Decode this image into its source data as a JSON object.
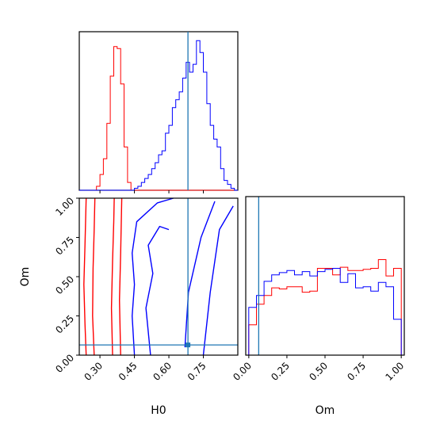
{
  "chart_data": {
    "type": "corner",
    "parameters": [
      "H0",
      "Om"
    ],
    "truth": {
      "H0": 0.683,
      "Om": 0.065
    },
    "colors": {
      "red_samples": "#ff0000",
      "blue_samples": "#0000ff",
      "truth": "#1f77b4"
    },
    "panels": {
      "h0_marginal": {
        "type": "histogram",
        "xlim": [
          0.21,
          0.9
        ],
        "x_ticks_visible_labels": false,
        "bin_edges": [
          0.21,
          0.225,
          0.24,
          0.255,
          0.27,
          0.285,
          0.3,
          0.315,
          0.33,
          0.345,
          0.36,
          0.375,
          0.39,
          0.405,
          0.42,
          0.435,
          0.45,
          0.465,
          0.48,
          0.495,
          0.51,
          0.525,
          0.54,
          0.555,
          0.57,
          0.585,
          0.6,
          0.615,
          0.63,
          0.645,
          0.66,
          0.675,
          0.69,
          0.705,
          0.72,
          0.735,
          0.75,
          0.765,
          0.78,
          0.795,
          0.81,
          0.825,
          0.84,
          0.855,
          0.87,
          0.885,
          0.9
        ],
        "series": [
          {
            "color": "red",
            "counts": [
              0,
              0,
              0,
              0,
              0,
              2,
              8,
              16,
              34,
              58,
              73,
              72,
              54,
              22,
              4,
              0,
              0,
              0,
              0,
              0,
              0,
              0,
              0,
              0,
              0,
              0,
              0,
              0,
              0,
              0,
              0,
              0,
              0,
              0,
              0,
              0,
              0,
              0,
              0,
              0,
              0,
              0,
              0,
              0,
              0,
              0
            ]
          },
          {
            "color": "blue",
            "counts": [
              0,
              0,
              0,
              0,
              0,
              0,
              0,
              0,
              0,
              0,
              0,
              0,
              0,
              0,
              0,
              0,
              1,
              2,
              4,
              6,
              8,
              11,
              14,
              18,
              20,
              29,
              33,
              42,
              46,
              50,
              57,
              65,
              60,
              64,
              76,
              70,
              60,
              44,
              33,
              26,
              22,
              11,
              5,
              3,
              1,
              0
            ]
          }
        ]
      },
      "joint": {
        "type": "contour",
        "xlim": [
          0.21,
          0.9
        ],
        "ylim": [
          0.0,
          1.0
        ],
        "x_ticks": [
          0.3,
          0.45,
          0.6,
          0.75
        ],
        "y_ticks": [
          0.0,
          0.25,
          0.5,
          0.75,
          1.0
        ],
        "xlabel": "H0",
        "ylabel": "Om",
        "contours": [
          {
            "color": "red",
            "points": [
              [
                0.24,
                0.0
              ],
              [
                0.235,
                0.2
              ],
              [
                0.23,
                0.45
              ],
              [
                0.235,
                0.7
              ],
              [
                0.24,
                1.0
              ]
            ]
          },
          {
            "color": "red",
            "points": [
              [
                0.275,
                0.0
              ],
              [
                0.268,
                0.25
              ],
              [
                0.27,
                0.55
              ],
              [
                0.275,
                0.8
              ],
              [
                0.278,
                1.0
              ]
            ]
          },
          {
            "color": "red",
            "points": [
              [
                0.355,
                0.0
              ],
              [
                0.35,
                0.3
              ],
              [
                0.355,
                0.6
              ],
              [
                0.36,
                0.85
              ],
              [
                0.362,
                1.0
              ]
            ]
          },
          {
            "color": "red",
            "points": [
              [
                0.39,
                0.0
              ],
              [
                0.385,
                0.35
              ],
              [
                0.39,
                0.65
              ],
              [
                0.395,
                1.0
              ]
            ]
          },
          {
            "color": "blue",
            "points": [
              [
                0.45,
                0.0
              ],
              [
                0.44,
                0.25
              ],
              [
                0.45,
                0.45
              ],
              [
                0.44,
                0.65
              ],
              [
                0.46,
                0.85
              ],
              [
                0.55,
                0.97
              ],
              [
                0.62,
                1.0
              ]
            ]
          },
          {
            "color": "blue",
            "points": [
              [
                0.52,
                0.0
              ],
              [
                0.5,
                0.3
              ],
              [
                0.53,
                0.52
              ],
              [
                0.51,
                0.7
              ],
              [
                0.56,
                0.82
              ],
              [
                0.6,
                0.8
              ]
            ]
          },
          {
            "color": "blue",
            "points": [
              [
                0.67,
                0.05
              ],
              [
                0.685,
                0.4
              ],
              [
                0.74,
                0.75
              ],
              [
                0.8,
                0.98
              ]
            ]
          },
          {
            "color": "blue",
            "points": [
              [
                0.75,
                0.0
              ],
              [
                0.78,
                0.4
              ],
              [
                0.82,
                0.8
              ],
              [
                0.88,
                0.95
              ]
            ]
          }
        ]
      },
      "om_marginal": {
        "type": "histogram",
        "xlim": [
          -0.02,
          1.02
        ],
        "x_ticks": [
          0.0,
          0.25,
          0.5,
          0.75,
          1.0
        ],
        "xlabel": "Om",
        "bin_edges": [
          0.0,
          0.05,
          0.1,
          0.15,
          0.2,
          0.25,
          0.3,
          0.35,
          0.4,
          0.45,
          0.5,
          0.55,
          0.6,
          0.65,
          0.7,
          0.75,
          0.8,
          0.85,
          0.9,
          0.95,
          1.0
        ],
        "series": [
          {
            "color": "red",
            "counts": [
              28,
              47,
              55,
              62,
              61,
              63,
              63,
              58,
              59,
              80,
              80,
              74,
              81,
              78,
              78,
              79,
              80,
              88,
              73,
              80
            ]
          },
          {
            "color": "blue",
            "counts": [
              44,
              55,
              68,
              74,
              76,
              78,
              74,
              77,
              73,
              77,
              79,
              80,
              67,
              75,
              62,
              63,
              59,
              67,
              63,
              33
            ]
          }
        ]
      }
    }
  }
}
